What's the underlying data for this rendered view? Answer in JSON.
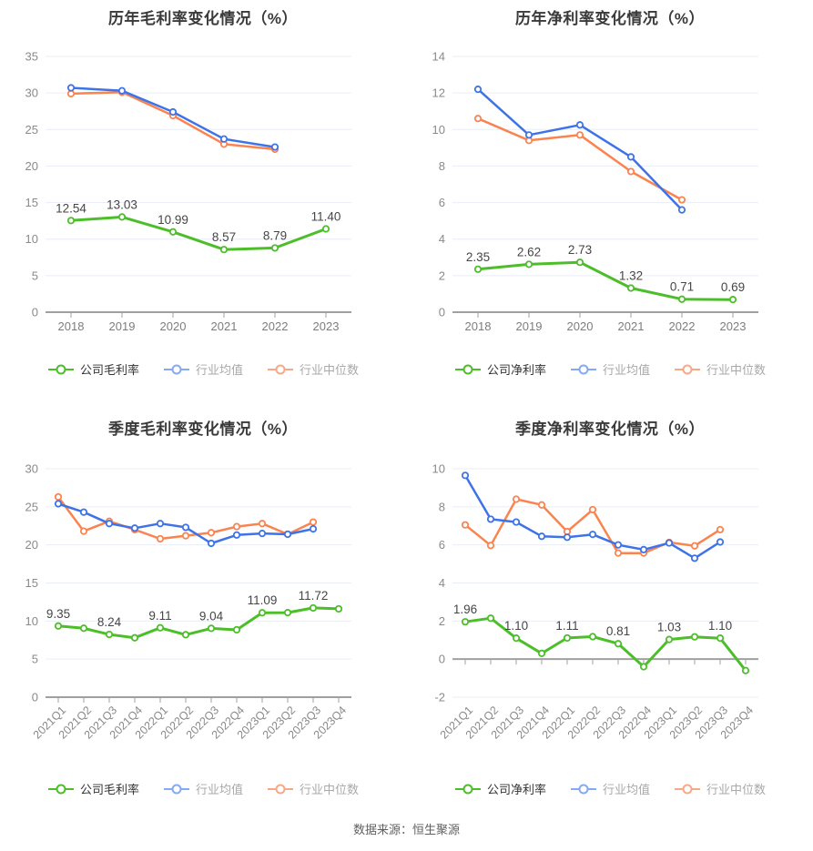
{
  "footer": {
    "text": "数据来源：恒生聚源"
  },
  "colors": {
    "company": "#4cbe2a",
    "industry_mean": "#3e73e8",
    "industry_median": "#fb8350",
    "legend_mean_symbol": "#85a9f5",
    "legend_median_symbol": "#f9a887",
    "grid": "#e9edf6",
    "axis": "#a0a0a0",
    "y_tick_label": "#8a8a8a",
    "x_tick_label": "#7d7d7d",
    "value_label": "#464646",
    "title": "#3a3a3a"
  },
  "chart_data": [
    {
      "id": "annual-gross-margin",
      "type": "line",
      "title": "历年毛利率变化情况（%）",
      "categories": [
        "2018",
        "2019",
        "2020",
        "2021",
        "2022",
        "2023"
      ],
      "ylim": [
        0,
        35
      ],
      "yticks": [
        0,
        5,
        10,
        15,
        20,
        25,
        30,
        35
      ],
      "x_rotate": false,
      "legend_position": "bottom",
      "grid": true,
      "series": [
        {
          "key": "company",
          "name": "公司毛利率",
          "values": [
            12.54,
            13.03,
            10.99,
            8.57,
            8.79,
            11.4
          ],
          "point_labels": [
            "12.54",
            "13.03",
            "10.99",
            "8.57",
            "8.79",
            "11.40"
          ]
        },
        {
          "key": "industry_mean",
          "name": "行业均值",
          "values": [
            30.7,
            30.3,
            27.4,
            23.7,
            22.6,
            null
          ]
        },
        {
          "key": "industry_median",
          "name": "行业中位数",
          "values": [
            29.9,
            30.1,
            26.9,
            23.0,
            22.3,
            null
          ]
        }
      ]
    },
    {
      "id": "annual-net-margin",
      "type": "line",
      "title": "历年净利率变化情况（%）",
      "categories": [
        "2018",
        "2019",
        "2020",
        "2021",
        "2022",
        "2023"
      ],
      "ylim": [
        0,
        14
      ],
      "yticks": [
        0,
        2,
        4,
        6,
        8,
        10,
        12,
        14
      ],
      "x_rotate": false,
      "legend_position": "bottom",
      "grid": true,
      "series": [
        {
          "key": "company",
          "name": "公司净利率",
          "values": [
            2.35,
            2.62,
            2.73,
            1.32,
            0.71,
            0.69
          ],
          "point_labels": [
            "2.35",
            "2.62",
            "2.73",
            "1.32",
            "0.71",
            "0.69"
          ]
        },
        {
          "key": "industry_mean",
          "name": "行业均值",
          "values": [
            12.2,
            9.7,
            10.25,
            8.5,
            5.6,
            null
          ]
        },
        {
          "key": "industry_median",
          "name": "行业中位数",
          "values": [
            10.6,
            9.4,
            9.7,
            7.7,
            6.15,
            null
          ]
        }
      ]
    },
    {
      "id": "quarterly-gross-margin",
      "type": "line",
      "title": "季度毛利率变化情况（%）",
      "categories": [
        "2021Q1",
        "2021Q2",
        "2021Q3",
        "2021Q4",
        "2022Q1",
        "2022Q2",
        "2022Q3",
        "2022Q4",
        "2023Q1",
        "2023Q2",
        "2023Q3",
        "2023Q4"
      ],
      "ylim": [
        0,
        30
      ],
      "yticks": [
        0,
        5,
        10,
        15,
        20,
        25,
        30
      ],
      "x_rotate": true,
      "legend_position": "bottom",
      "grid": true,
      "series": [
        {
          "key": "company",
          "name": "公司毛利率",
          "values": [
            9.35,
            9.05,
            8.24,
            7.8,
            9.11,
            8.2,
            9.04,
            8.85,
            11.09,
            11.1,
            11.72,
            11.6
          ],
          "point_labels": [
            "9.35",
            null,
            "8.24",
            null,
            "9.11",
            null,
            "9.04",
            null,
            "11.09",
            null,
            "11.72",
            null
          ]
        },
        {
          "key": "industry_mean",
          "name": "行业均值",
          "values": [
            25.4,
            24.3,
            22.8,
            22.2,
            22.8,
            22.3,
            20.2,
            21.3,
            21.5,
            21.4,
            22.1,
            null
          ]
        },
        {
          "key": "industry_median",
          "name": "行业中位数",
          "values": [
            26.3,
            21.8,
            23.1,
            22.0,
            20.8,
            21.2,
            21.6,
            22.4,
            22.8,
            21.4,
            23.0,
            null
          ]
        }
      ]
    },
    {
      "id": "quarterly-net-margin",
      "type": "line",
      "title": "季度净利率变化情况（%）",
      "categories": [
        "2021Q1",
        "2021Q2",
        "2021Q3",
        "2021Q4",
        "2022Q1",
        "2022Q2",
        "2022Q3",
        "2022Q4",
        "2023Q1",
        "2023Q2",
        "2023Q3",
        "2023Q4"
      ],
      "ylim": [
        -2,
        10
      ],
      "yticks": [
        -2,
        0,
        2,
        4,
        6,
        8,
        10
      ],
      "x_rotate": true,
      "legend_position": "bottom",
      "grid": true,
      "series": [
        {
          "key": "company",
          "name": "公司净利率",
          "values": [
            1.96,
            2.15,
            1.1,
            0.3,
            1.11,
            1.18,
            0.81,
            -0.4,
            1.03,
            1.17,
            1.1,
            -0.6
          ],
          "point_labels": [
            "1.96",
            null,
            "1.10",
            null,
            "1.11",
            null,
            "0.81",
            null,
            "1.03",
            null,
            "1.10",
            null
          ]
        },
        {
          "key": "industry_mean",
          "name": "行业均值",
          "values": [
            9.65,
            7.35,
            7.2,
            6.45,
            6.4,
            6.55,
            6.0,
            5.75,
            6.1,
            5.3,
            6.15,
            null
          ]
        },
        {
          "key": "industry_median",
          "name": "行业中位数",
          "values": [
            7.05,
            5.97,
            8.4,
            8.1,
            6.7,
            7.85,
            5.57,
            5.57,
            6.13,
            5.95,
            6.8,
            null
          ]
        }
      ]
    }
  ]
}
